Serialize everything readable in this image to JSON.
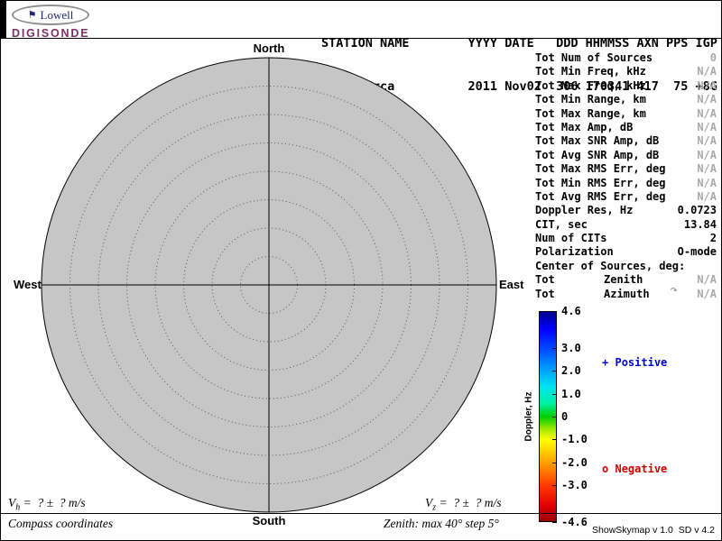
{
  "logo": {
    "brand": "Lowell",
    "product": "DIGISONDE",
    "flag_glyph": "⚑"
  },
  "header": {
    "line1": "STATION NAME        YYYY DATE   DDD HHMMSS AXN PPS IGP",
    "line2": " Jicamarca          2011 Nov02  306 170341 417  75 +8G"
  },
  "stats": {
    "rows": [
      {
        "label": "Tot Num of Sources",
        "value": "0",
        "muted": true
      },
      {
        "label": "Tot Min Freq, kHz",
        "value": "N/A",
        "muted": true
      },
      {
        "label": "Tot Max Freq, kHz",
        "value": "N/A",
        "muted": true
      },
      {
        "label": "Tot Min Range, km",
        "value": "N/A",
        "muted": true
      },
      {
        "label": "Tot Max Range, km",
        "value": "N/A",
        "muted": true
      },
      {
        "label": "Tot Max Amp, dB",
        "value": "N/A",
        "muted": true
      },
      {
        "label": "Tot Max SNR Amp, dB",
        "value": "N/A",
        "muted": true
      },
      {
        "label": "Tot Avg SNR Amp, dB",
        "value": "N/A",
        "muted": true
      },
      {
        "label": "Tot Max RMS Err, deg",
        "value": "N/A",
        "muted": true
      },
      {
        "label": "Tot Min RMS Err, deg",
        "value": "N/A",
        "muted": true
      },
      {
        "label": "Tot Avg RMS Err, deg",
        "value": "N/A",
        "muted": true
      },
      {
        "label": "Doppler Res, Hz",
        "value": "0.0723",
        "muted": false
      },
      {
        "label": "CIT, sec",
        "value": "13.84",
        "muted": false
      },
      {
        "label": "Num of CITs",
        "value": "2",
        "muted": false
      },
      {
        "label": "Polarization",
        "value": "O-mode",
        "muted": false
      },
      {
        "label": "Center of Sources, deg:",
        "value": "",
        "muted": false
      },
      {
        "label": "Tot",
        "mid": "Zenith",
        "value": "N/A",
        "muted": true
      },
      {
        "label": "Tot",
        "mid": "Azimuth",
        "value": "N/A",
        "muted": true,
        "icon": "azimuth-curl",
        "icon_glyph": "↷"
      }
    ]
  },
  "chart_data": {
    "type": "scatter",
    "projection": "polar-skymap",
    "title": "",
    "num_sources": 0,
    "points": [],
    "zenith_max_deg": 40,
    "zenith_step_deg": 5,
    "compass": {
      "north": "North",
      "south": "South",
      "east": "East",
      "west": "West"
    },
    "disk_color": "#c6c6c6",
    "colorbar": {
      "label": "Doppler, Hz",
      "min": -4.6,
      "max": 4.6,
      "ticks": [
        "4.6",
        "3.0",
        "2.0",
        "1.0",
        "0",
        "-1.0",
        "-2.0",
        "-3.0",
        "-4.6"
      ],
      "gradient": [
        {
          "pos": 0,
          "color": "#000090"
        },
        {
          "pos": 8,
          "color": "#0000ff"
        },
        {
          "pos": 17,
          "color": "#0044ff"
        },
        {
          "pos": 28,
          "color": "#00a4ff"
        },
        {
          "pos": 36,
          "color": "#00e4f0"
        },
        {
          "pos": 44,
          "color": "#00f0a0"
        },
        {
          "pos": 50,
          "color": "#00cc00"
        },
        {
          "pos": 56,
          "color": "#a0e800"
        },
        {
          "pos": 61,
          "color": "#ffff00"
        },
        {
          "pos": 72,
          "color": "#ffa000"
        },
        {
          "pos": 83,
          "color": "#ff3800"
        },
        {
          "pos": 93,
          "color": "#e00000"
        },
        {
          "pos": 100,
          "color": "#980000"
        }
      ],
      "legend_positive": {
        "marker": "+",
        "label": "Positive",
        "color": "#0000cd"
      },
      "legend_negative": {
        "marker": "o",
        "label": "Negative",
        "color": "#cd0000"
      }
    }
  },
  "footer": {
    "vh": {
      "var": "V",
      "sub": "h",
      "rest": " =  ? ±  ? m/s"
    },
    "vz": {
      "var": "V",
      "sub": "z",
      "rest": " =  ? ±  ? m/s"
    },
    "coordinates_label": "Compass coordinates",
    "zenith_label": "Zenith: max 40° step 5°",
    "version_label": "ShowSkymap v 1.0  SD v 4.2"
  }
}
